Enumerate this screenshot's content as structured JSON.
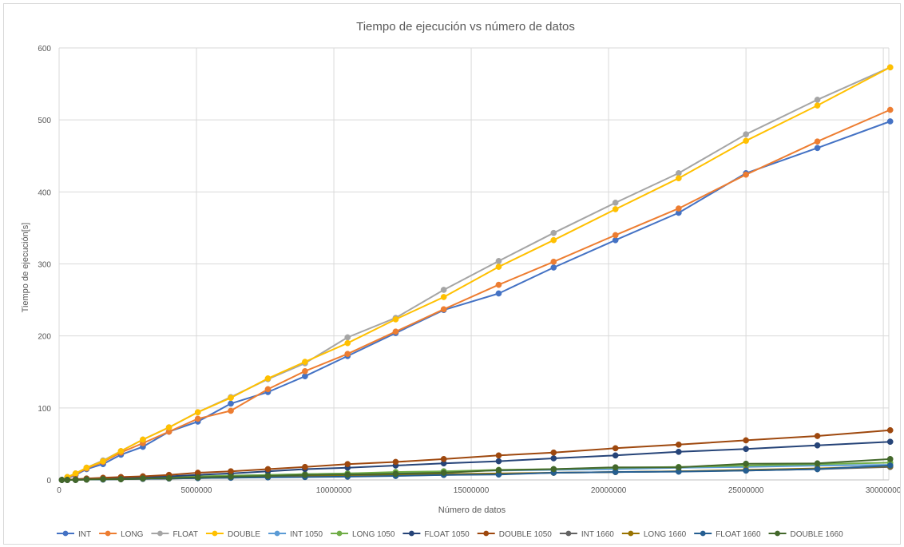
{
  "chart_data": {
    "type": "line",
    "title": "Tiempo de ejecución vs número de datos",
    "xlabel": "Número de datos",
    "ylabel": "Tiempo de ejecución[s]",
    "xlim": [
      0,
      30200000
    ],
    "ylim": [
      0,
      600
    ],
    "xticks": [
      0,
      5000000,
      10000000,
      15000000,
      20000000,
      25000000,
      30000000
    ],
    "xtick_labels": [
      "0",
      "5000000",
      "10000000",
      "15000000",
      "20000000",
      "25000000",
      "30000000"
    ],
    "yticks": [
      0,
      100,
      200,
      300,
      400,
      500,
      600
    ],
    "ytick_labels": [
      "0",
      "100",
      "200",
      "300",
      "400",
      "500",
      "600"
    ],
    "grid": true,
    "legend_position": "bottom",
    "x": [
      100000,
      300000,
      600000,
      1000000,
      1600000,
      2250000,
      3050000,
      4000000,
      5050000,
      6250000,
      7600000,
      8950000,
      10500000,
      12250000,
      14000000,
      16000000,
      18000000,
      20250000,
      22550000,
      25000000,
      27600000,
      30250000
    ],
    "series": [
      {
        "name": "INT",
        "color": "#4472c4",
        "values": [
          0,
          2,
          7,
          15,
          22,
          35,
          46,
          67,
          81,
          106,
          122,
          144,
          172,
          204,
          236,
          259,
          295,
          333,
          371,
          426,
          461,
          498
        ]
      },
      {
        "name": "LONG",
        "color": "#ed7d31",
        "values": [
          0,
          3,
          8,
          16,
          25,
          38,
          51,
          67,
          85,
          96,
          126,
          151,
          175,
          206,
          237,
          271,
          303,
          340,
          377,
          424,
          470,
          514
        ]
      },
      {
        "name": "FLOAT",
        "color": "#a5a5a5",
        "values": [
          0,
          4,
          9,
          17,
          27,
          40,
          56,
          73,
          94,
          115,
          140,
          162,
          198,
          225,
          264,
          304,
          343,
          385,
          426,
          480,
          528,
          573
        ]
      },
      {
        "name": "DOUBLE",
        "color": "#ffc000",
        "values": [
          0,
          4,
          9,
          17,
          26,
          40,
          56,
          73,
          94,
          114,
          141,
          164,
          190,
          223,
          254,
          296,
          333,
          376,
          419,
          471,
          520,
          573
        ]
      },
      {
        "name": "INT 1050",
        "color": "#5b9bd5",
        "values": [
          0,
          0,
          0.5,
          1,
          1.5,
          2,
          3,
          4,
          5,
          6,
          7,
          8,
          9,
          10,
          12,
          13,
          14,
          15,
          17,
          18,
          20,
          21
        ]
      },
      {
        "name": "LONG 1050",
        "color": "#70ad47",
        "values": [
          0,
          0,
          0.5,
          1,
          1.5,
          2,
          3,
          4,
          5,
          6,
          7,
          8,
          9,
          11,
          12,
          14,
          15,
          17,
          18,
          20,
          22,
          24
        ]
      },
      {
        "name": "FLOAT 1050",
        "color": "#264478",
        "values": [
          0,
          0,
          1,
          1,
          2,
          3,
          4,
          5,
          7,
          9,
          12,
          15,
          17,
          20,
          23,
          26,
          30,
          34,
          39,
          43,
          48,
          53
        ]
      },
      {
        "name": "DOUBLE 1050",
        "color": "#9e480e",
        "values": [
          0,
          0,
          1,
          2,
          3,
          4,
          5,
          7,
          10,
          12,
          15,
          18,
          22,
          25,
          29,
          34,
          38,
          44,
          49,
          55,
          61,
          69
        ]
      },
      {
        "name": "INT 1660",
        "color": "#636363",
        "values": [
          0,
          0,
          0,
          0.5,
          1,
          1,
          1.5,
          2,
          2.5,
          3,
          4,
          4.5,
          5,
          6,
          7,
          8,
          10,
          11,
          12,
          13,
          15,
          18
        ]
      },
      {
        "name": "LONG 1660",
        "color": "#997300",
        "values": [
          0,
          0,
          0,
          0.5,
          1,
          1,
          1.5,
          2,
          3,
          3.5,
          4,
          5,
          6,
          7,
          8,
          9,
          10,
          11,
          12,
          14,
          16,
          19
        ]
      },
      {
        "name": "FLOAT 1660",
        "color": "#255e91",
        "values": [
          0,
          0,
          0,
          0.5,
          0.5,
          1,
          1.5,
          2,
          2.5,
          3,
          3.5,
          4,
          4.5,
          5.5,
          7,
          7.5,
          10,
          11,
          11.5,
          13,
          15,
          20
        ]
      },
      {
        "name": "DOUBLE 1660",
        "color": "#43682b",
        "values": [
          0,
          0,
          0,
          0.5,
          1,
          1,
          2,
          2.5,
          3.5,
          4.5,
          5.5,
          7,
          7.5,
          8.5,
          10,
          13.5,
          15,
          17.5,
          17.5,
          22.5,
          23,
          29
        ]
      }
    ]
  }
}
